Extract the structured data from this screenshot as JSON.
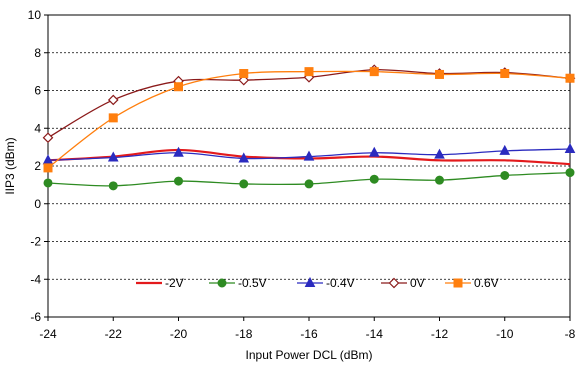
{
  "chart_data": {
    "type": "line",
    "xlabel": "Input Power DCL (dBm)",
    "ylabel": "IIP3  (dBm)",
    "xlim": [
      -24,
      -8
    ],
    "ylim": [
      -6,
      10
    ],
    "x": [
      -24,
      -22,
      -20,
      -18,
      -16,
      -14,
      -12,
      -10,
      -8
    ],
    "x_ticks": [
      "-24",
      "-22",
      "-20",
      "-18",
      "-16",
      "-14",
      "-12",
      "-10",
      "-8"
    ],
    "y_ticks": [
      "10",
      "8",
      "6",
      "4",
      "2",
      "0",
      "-2",
      "-4",
      "-6"
    ],
    "y_tick_values": [
      10,
      8,
      6,
      4,
      2,
      0,
      -2,
      -4,
      -6
    ],
    "grid": "horizontal-dashed",
    "legend_position": "bottom-center",
    "series": [
      {
        "name": "-2V",
        "color": "#e31a1c",
        "marker": "none",
        "values": [
          2.3,
          2.5,
          2.85,
          2.5,
          2.4,
          2.5,
          2.3,
          2.3,
          2.1
        ]
      },
      {
        "name": "-0.5V",
        "color": "#2e8b22",
        "marker": "circle",
        "values": [
          1.1,
          0.95,
          1.2,
          1.05,
          1.05,
          1.3,
          1.25,
          1.5,
          1.65
        ]
      },
      {
        "name": "-0.4V",
        "color": "#2b2bbf",
        "marker": "triangle",
        "values": [
          2.3,
          2.45,
          2.7,
          2.4,
          2.5,
          2.7,
          2.6,
          2.8,
          2.9
        ]
      },
      {
        "name": "0V",
        "color": "#8b1a1a",
        "marker": "diamond",
        "values": [
          3.5,
          5.5,
          6.5,
          6.55,
          6.7,
          7.1,
          6.9,
          6.95,
          6.65
        ]
      },
      {
        "name": "0.6V",
        "color": "#ff7f0e",
        "marker": "square",
        "values": [
          1.9,
          4.55,
          6.2,
          6.9,
          7.0,
          7.0,
          6.85,
          6.9,
          6.65
        ]
      }
    ]
  }
}
